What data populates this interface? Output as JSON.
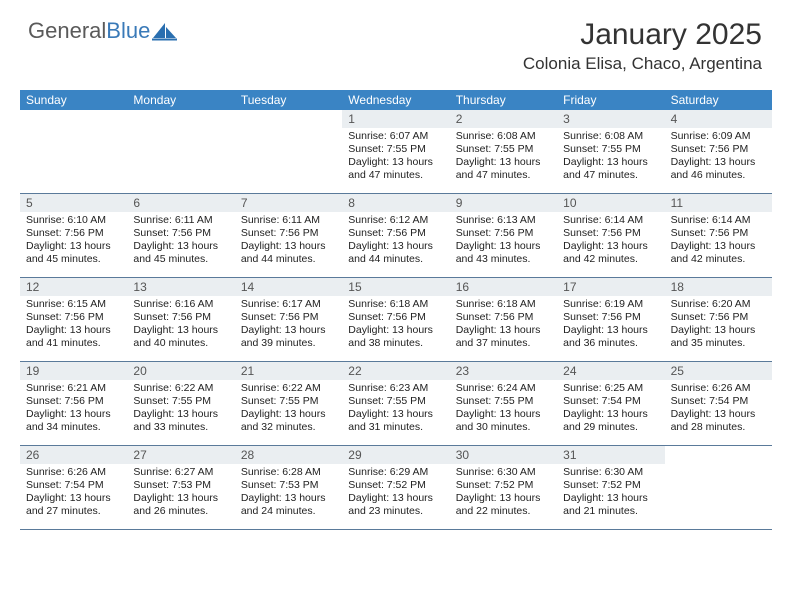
{
  "brand": {
    "name1": "General",
    "name2": "Blue"
  },
  "title": "January 2025",
  "location": "Colonia Elisa, Chaco, Argentina",
  "colors": {
    "header_bg": "#3a84c4",
    "header_text": "#ffffff",
    "daynum_bg": "#eaeef1",
    "border": "#5a7a9a",
    "logo_blue": "#2a6fb0"
  },
  "day_headers": [
    "Sunday",
    "Monday",
    "Tuesday",
    "Wednesday",
    "Thursday",
    "Friday",
    "Saturday"
  ],
  "weeks": [
    [
      null,
      null,
      null,
      {
        "n": "1",
        "sr": "6:07 AM",
        "ss": "7:55 PM",
        "dl": "13 hours and 47 minutes."
      },
      {
        "n": "2",
        "sr": "6:08 AM",
        "ss": "7:55 PM",
        "dl": "13 hours and 47 minutes."
      },
      {
        "n": "3",
        "sr": "6:08 AM",
        "ss": "7:55 PM",
        "dl": "13 hours and 47 minutes."
      },
      {
        "n": "4",
        "sr": "6:09 AM",
        "ss": "7:56 PM",
        "dl": "13 hours and 46 minutes."
      }
    ],
    [
      {
        "n": "5",
        "sr": "6:10 AM",
        "ss": "7:56 PM",
        "dl": "13 hours and 45 minutes."
      },
      {
        "n": "6",
        "sr": "6:11 AM",
        "ss": "7:56 PM",
        "dl": "13 hours and 45 minutes."
      },
      {
        "n": "7",
        "sr": "6:11 AM",
        "ss": "7:56 PM",
        "dl": "13 hours and 44 minutes."
      },
      {
        "n": "8",
        "sr": "6:12 AM",
        "ss": "7:56 PM",
        "dl": "13 hours and 44 minutes."
      },
      {
        "n": "9",
        "sr": "6:13 AM",
        "ss": "7:56 PM",
        "dl": "13 hours and 43 minutes."
      },
      {
        "n": "10",
        "sr": "6:14 AM",
        "ss": "7:56 PM",
        "dl": "13 hours and 42 minutes."
      },
      {
        "n": "11",
        "sr": "6:14 AM",
        "ss": "7:56 PM",
        "dl": "13 hours and 42 minutes."
      }
    ],
    [
      {
        "n": "12",
        "sr": "6:15 AM",
        "ss": "7:56 PM",
        "dl": "13 hours and 41 minutes."
      },
      {
        "n": "13",
        "sr": "6:16 AM",
        "ss": "7:56 PM",
        "dl": "13 hours and 40 minutes."
      },
      {
        "n": "14",
        "sr": "6:17 AM",
        "ss": "7:56 PM",
        "dl": "13 hours and 39 minutes."
      },
      {
        "n": "15",
        "sr": "6:18 AM",
        "ss": "7:56 PM",
        "dl": "13 hours and 38 minutes."
      },
      {
        "n": "16",
        "sr": "6:18 AM",
        "ss": "7:56 PM",
        "dl": "13 hours and 37 minutes."
      },
      {
        "n": "17",
        "sr": "6:19 AM",
        "ss": "7:56 PM",
        "dl": "13 hours and 36 minutes."
      },
      {
        "n": "18",
        "sr": "6:20 AM",
        "ss": "7:56 PM",
        "dl": "13 hours and 35 minutes."
      }
    ],
    [
      {
        "n": "19",
        "sr": "6:21 AM",
        "ss": "7:56 PM",
        "dl": "13 hours and 34 minutes."
      },
      {
        "n": "20",
        "sr": "6:22 AM",
        "ss": "7:55 PM",
        "dl": "13 hours and 33 minutes."
      },
      {
        "n": "21",
        "sr": "6:22 AM",
        "ss": "7:55 PM",
        "dl": "13 hours and 32 minutes."
      },
      {
        "n": "22",
        "sr": "6:23 AM",
        "ss": "7:55 PM",
        "dl": "13 hours and 31 minutes."
      },
      {
        "n": "23",
        "sr": "6:24 AM",
        "ss": "7:55 PM",
        "dl": "13 hours and 30 minutes."
      },
      {
        "n": "24",
        "sr": "6:25 AM",
        "ss": "7:54 PM",
        "dl": "13 hours and 29 minutes."
      },
      {
        "n": "25",
        "sr": "6:26 AM",
        "ss": "7:54 PM",
        "dl": "13 hours and 28 minutes."
      }
    ],
    [
      {
        "n": "26",
        "sr": "6:26 AM",
        "ss": "7:54 PM",
        "dl": "13 hours and 27 minutes."
      },
      {
        "n": "27",
        "sr": "6:27 AM",
        "ss": "7:53 PM",
        "dl": "13 hours and 26 minutes."
      },
      {
        "n": "28",
        "sr": "6:28 AM",
        "ss": "7:53 PM",
        "dl": "13 hours and 24 minutes."
      },
      {
        "n": "29",
        "sr": "6:29 AM",
        "ss": "7:52 PM",
        "dl": "13 hours and 23 minutes."
      },
      {
        "n": "30",
        "sr": "6:30 AM",
        "ss": "7:52 PM",
        "dl": "13 hours and 22 minutes."
      },
      {
        "n": "31",
        "sr": "6:30 AM",
        "ss": "7:52 PM",
        "dl": "13 hours and 21 minutes."
      },
      null
    ]
  ],
  "labels": {
    "sunrise": "Sunrise:",
    "sunset": "Sunset:",
    "daylight": "Daylight:"
  }
}
